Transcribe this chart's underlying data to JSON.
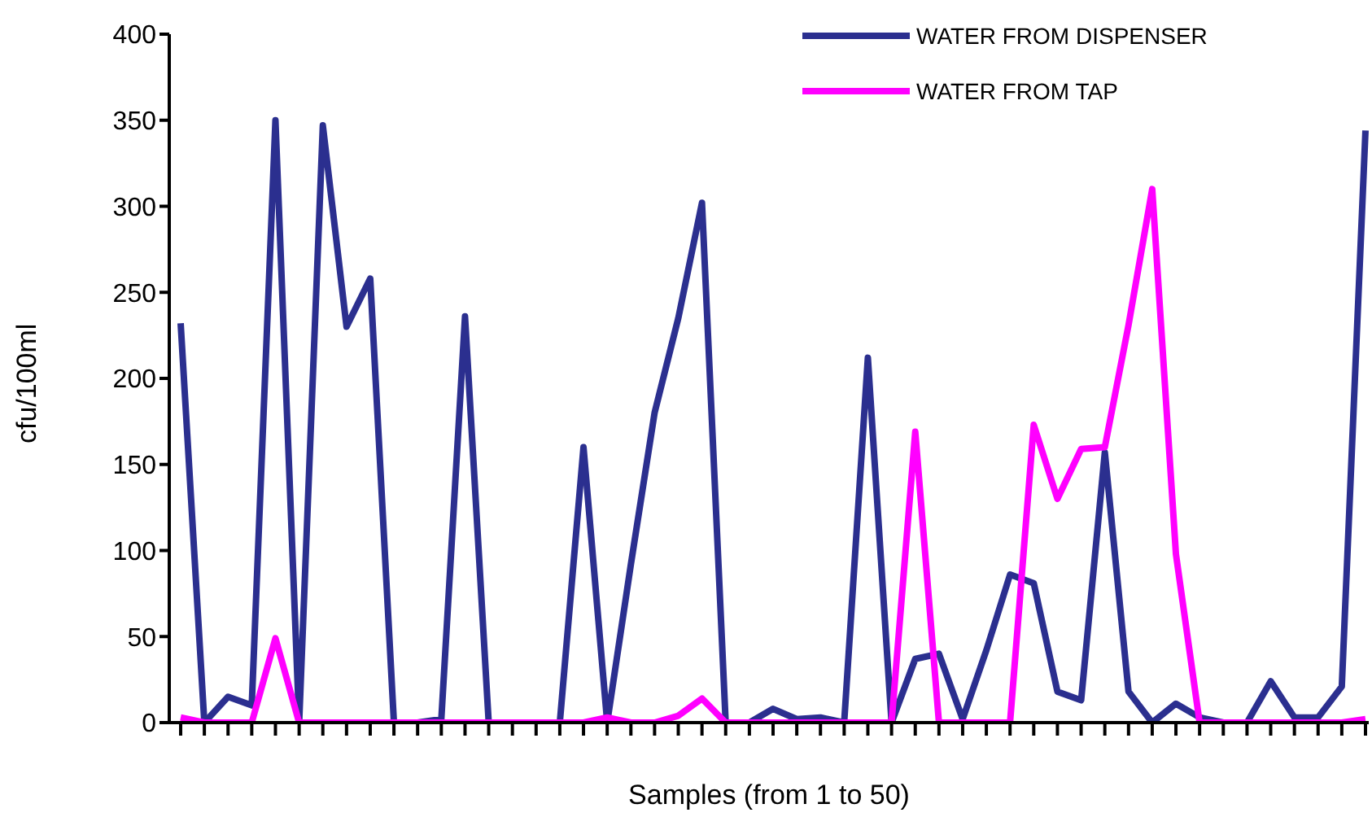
{
  "chart_data": {
    "type": "line",
    "xlabel": "Samples (from 1 to 50)",
    "ylabel": "cfu/100ml",
    "categories": [
      null,
      null,
      null,
      null,
      null,
      null,
      null,
      null,
      null,
      null,
      null,
      null,
      null,
      null,
      null,
      null,
      null,
      null,
      null,
      null,
      null,
      null,
      null,
      null,
      null,
      null,
      null,
      null,
      null,
      null,
      null,
      null,
      null,
      null,
      null,
      null,
      null,
      null,
      null,
      null,
      null,
      null,
      null,
      null,
      null,
      null,
      null,
      null,
      null,
      null,
      null
    ],
    "series": [
      {
        "name": "WATER FROM DISPENSER",
        "color": "#2b2f8f",
        "values": [
          232,
          0,
          15,
          10,
          350,
          0,
          347,
          230,
          258,
          0,
          0,
          2,
          236,
          0,
          0,
          0,
          0,
          160,
          0,
          92,
          180,
          235,
          302,
          0,
          0,
          8,
          2,
          3,
          0,
          212,
          0,
          37,
          40,
          2,
          42,
          86,
          81,
          18,
          13,
          157,
          18,
          0,
          11,
          3,
          0,
          0,
          24,
          3,
          3,
          21,
          344
        ]
      },
      {
        "name": "WATER FROM TAP",
        "color": "#ff00ff",
        "values": [
          3,
          0,
          0,
          0,
          49,
          0,
          0,
          0,
          0,
          0,
          0,
          0,
          0,
          0,
          0,
          0,
          0,
          0,
          3,
          0,
          0,
          4,
          14,
          0,
          0,
          0,
          0,
          0,
          0,
          0,
          0,
          169,
          0,
          0,
          0,
          0,
          173,
          130,
          159,
          160,
          231,
          310,
          98,
          0,
          0,
          0,
          0,
          0,
          0,
          0,
          2
        ]
      }
    ],
    "ylim": [
      0,
      400
    ],
    "yticks": [
      0,
      50,
      100,
      150,
      200,
      250,
      300,
      350,
      400
    ],
    "grid": false,
    "legend": "top right",
    "tick_labels": "y",
    "marker": "none",
    "line_style": "solid"
  }
}
